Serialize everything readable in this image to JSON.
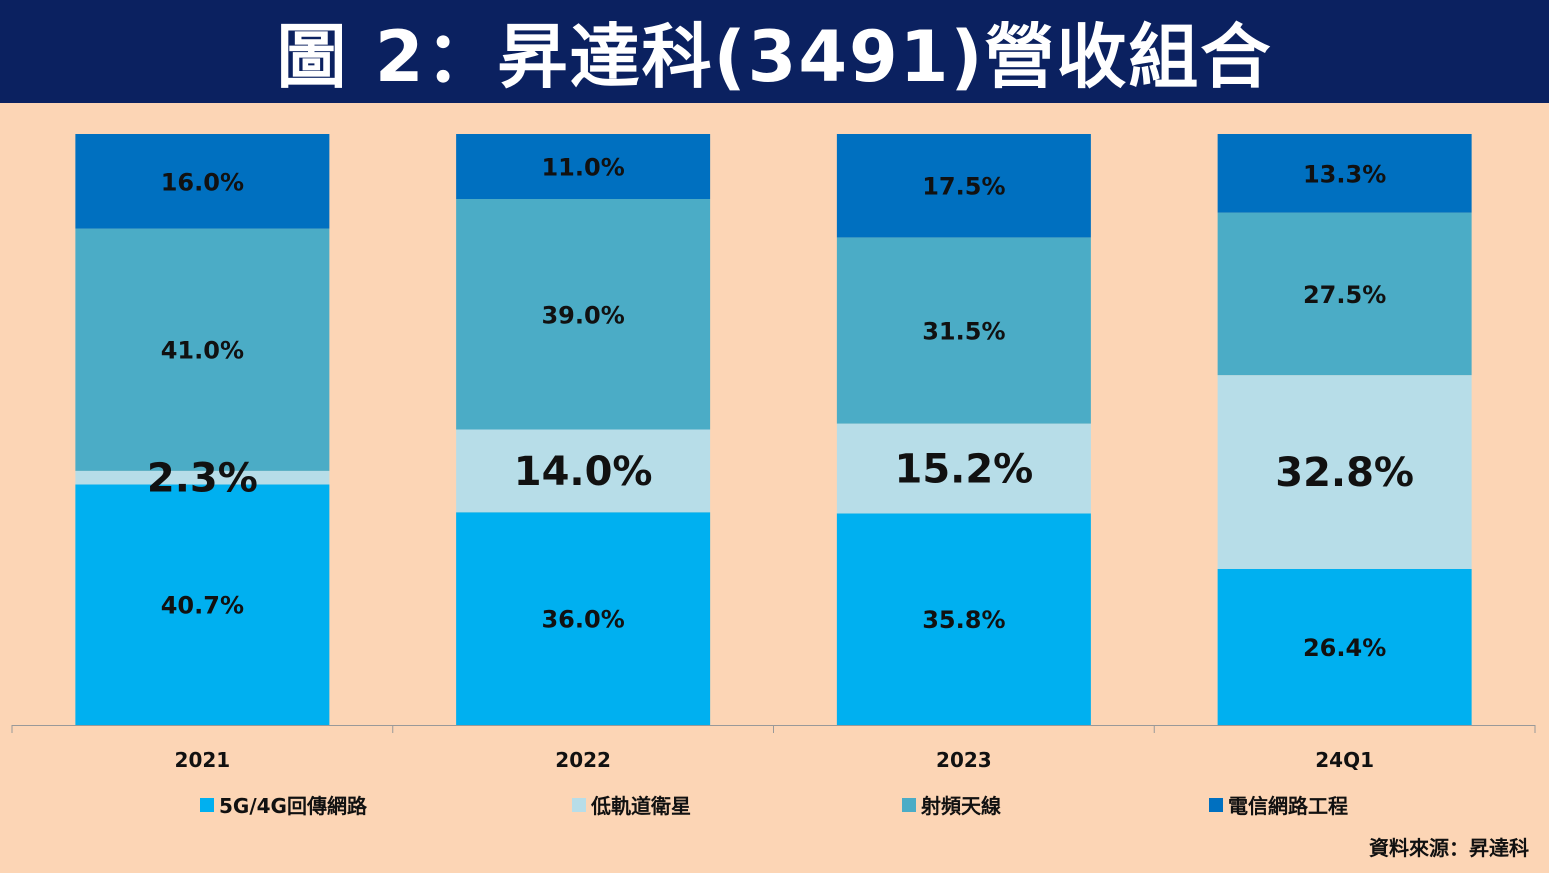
{
  "title": "圖 2：昇達科(3491)營收組合",
  "source": "資料來源：昇達科",
  "chart_data": {
    "type": "bar",
    "stacked": true,
    "categories": [
      "2021",
      "2022",
      "2023",
      "24Q1"
    ],
    "series": [
      {
        "name": "5G/4G回傳網路",
        "color": "#00b0f0",
        "values": [
          40.7,
          36.0,
          35.8,
          26.4
        ],
        "labels": [
          "40.7%",
          "36.0%",
          "35.8%",
          "26.4%"
        ]
      },
      {
        "name": "低軌道衛星",
        "color": "#b7dde8",
        "values": [
          2.3,
          14.0,
          15.2,
          32.8
        ],
        "labels": [
          "2.3%",
          "14.0%",
          "15.2%",
          "32.8%"
        ]
      },
      {
        "name": "射頻天線",
        "color": "#4bacc6",
        "values": [
          41.0,
          39.0,
          31.5,
          27.5
        ],
        "labels": [
          "41.0%",
          "39.0%",
          "31.5%",
          "27.5%"
        ]
      },
      {
        "name": "電信網路工程",
        "color": "#0070c0",
        "values": [
          16.0,
          11.0,
          17.5,
          13.3
        ],
        "labels": [
          "16.0%",
          "11.0%",
          "17.5%",
          "13.3%"
        ]
      }
    ],
    "ylim": [
      0,
      100
    ],
    "legend_position": "bottom",
    "grid": false
  }
}
